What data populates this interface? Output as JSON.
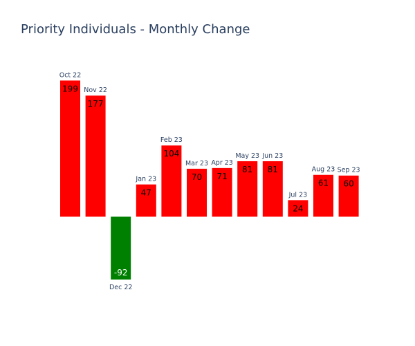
{
  "chart_data": {
    "type": "bar",
    "title": "Priority Individuals - Monthly Change",
    "categories": [
      "Oct 22",
      "Nov 22",
      "Dec 22",
      "Jan 23",
      "Feb 23",
      "Mar 23",
      "Apr 23",
      "May 23",
      "Jun 23",
      "Jul 23",
      "Aug 23",
      "Sep 23"
    ],
    "values": [
      199,
      177,
      -92,
      47,
      104,
      70,
      71,
      81,
      81,
      24,
      61,
      60
    ],
    "xlabel": "",
    "ylabel": "",
    "grid": false,
    "colors": {
      "positive": "#ff0000",
      "negative": "#008000",
      "text_positive": "#000000",
      "text_negative": "#ffffff"
    }
  }
}
